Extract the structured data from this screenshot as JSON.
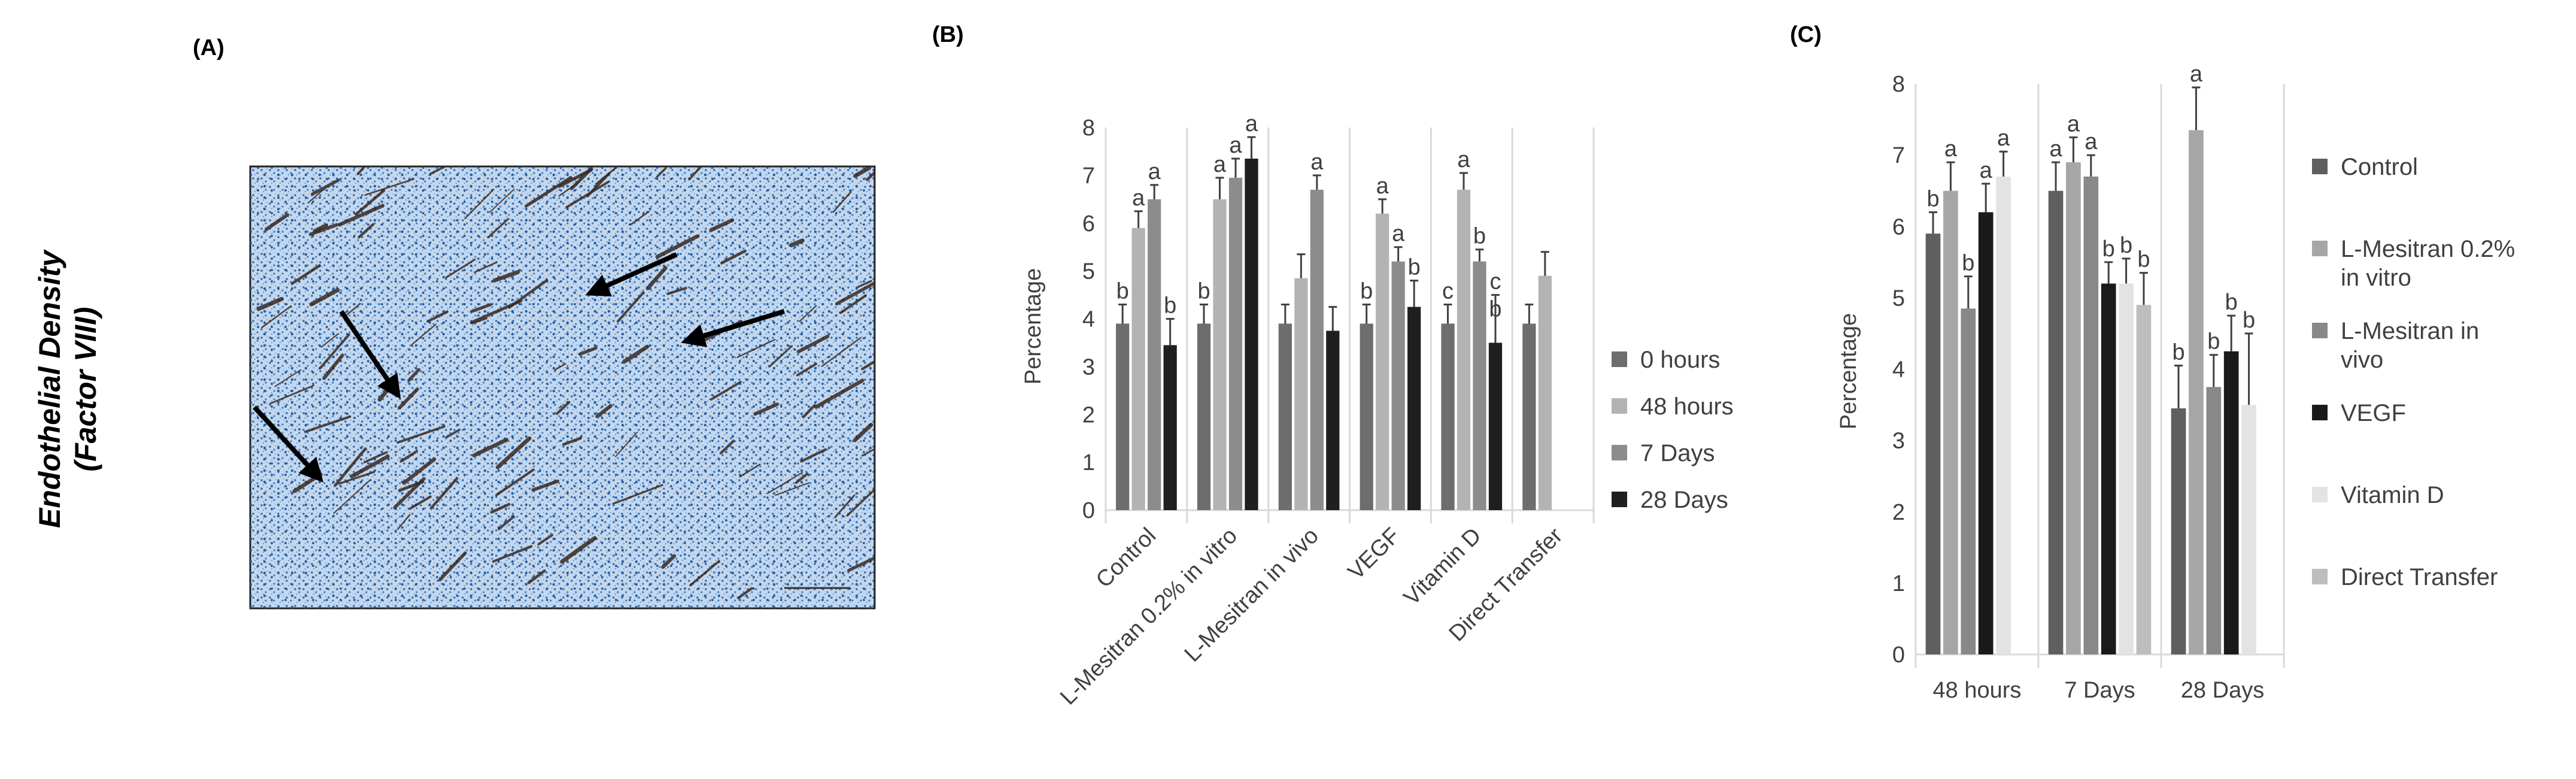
{
  "colors": {
    "background": "#ffffff",
    "axis": "#d9d9d9",
    "text": "#404040",
    "tissue_bg": "#b9cfe6",
    "tissue_dot": "#2f6fb8",
    "vessel": "#3a2a22",
    "arrow": "#000000"
  },
  "panel_a": {
    "label": "(A)",
    "y_title_line1": "Endothelial Density",
    "y_title_line2": "(Factor VIII)"
  },
  "chart_data": [
    {
      "panel_label": "(B)",
      "type": "bar",
      "title": "",
      "xlabel": "",
      "ylabel": "Percentage",
      "ylim": [
        0,
        8
      ],
      "yticks": [
        "0",
        "1",
        "2",
        "3",
        "4",
        "5",
        "6",
        "7",
        "8"
      ],
      "grid": false,
      "legend_position": "right",
      "categories": [
        "Control",
        "L-Mesitran 0.2% in vitro",
        "L-Mesitran in vivo",
        "VEGF",
        "Vitamin D",
        "Direct Transfer"
      ],
      "series": [
        {
          "name": "0 hours",
          "color": "#6d6d6d",
          "values": [
            3.9,
            3.9,
            3.9,
            3.9,
            3.9,
            3.9
          ],
          "errors": [
            0.4,
            0.4,
            0.4,
            0.4,
            0.4,
            0.4
          ],
          "labels": [
            "b",
            "b",
            "",
            "b",
            "c",
            ""
          ]
        },
        {
          "name": "48 hours",
          "color": "#b3b3b3",
          "values": [
            5.9,
            6.5,
            4.85,
            6.2,
            6.7,
            4.9
          ],
          "errors": [
            0.35,
            0.45,
            0.5,
            0.3,
            0.35,
            0.5
          ],
          "labels": [
            "a",
            "a",
            "",
            "a",
            "a",
            ""
          ]
        },
        {
          "name": "7 Days",
          "color": "#8c8c8c",
          "values": [
            6.5,
            6.95,
            6.7,
            5.2,
            5.2,
            null
          ],
          "errors": [
            0.3,
            0.4,
            0.3,
            0.3,
            0.25,
            null
          ],
          "labels": [
            "a",
            "a",
            "a",
            "a",
            "b",
            ""
          ]
        },
        {
          "name": "28 Days",
          "color": "#1f1f1f",
          "values": [
            3.45,
            7.35,
            3.75,
            4.25,
            3.5,
            null
          ],
          "errors": [
            0.55,
            0.45,
            0.5,
            0.55,
            1.0,
            null
          ],
          "labels": [
            "b",
            "a",
            "",
            "b",
            "c",
            ""
          ]
        }
      ],
      "extra_labels": [
        {
          "category": "Vitamin D",
          "series": "28 Days",
          "text": "b"
        }
      ]
    },
    {
      "panel_label": "(C)",
      "type": "bar",
      "title": "",
      "xlabel": "",
      "ylabel": "Percentage",
      "ylim": [
        0,
        8
      ],
      "yticks": [
        "0",
        "1",
        "2",
        "3",
        "4",
        "5",
        "6",
        "7",
        "8"
      ],
      "grid": false,
      "legend_position": "right",
      "categories": [
        "48 hours",
        "7 Days",
        "28 Days"
      ],
      "series": [
        {
          "name": "Control",
          "color": "#5f5f5f",
          "values": [
            5.9,
            6.5,
            3.45
          ],
          "errors": [
            0.3,
            0.4,
            0.6
          ],
          "labels": [
            "b",
            "a",
            "b"
          ]
        },
        {
          "name": "L-Mesitran 0.2% in vitro",
          "color": "#a6a6a6",
          "values": [
            6.5,
            6.9,
            7.35
          ],
          "errors": [
            0.4,
            0.35,
            0.6
          ],
          "labels": [
            "a",
            "a",
            "a"
          ]
        },
        {
          "name": "L-Mesitran in vivo",
          "color": "#888888",
          "values": [
            4.85,
            6.7,
            3.75
          ],
          "errors": [
            0.45,
            0.3,
            0.45
          ],
          "labels": [
            "b",
            "a",
            "b"
          ]
        },
        {
          "name": "VEGF",
          "color": "#1a1a1a",
          "values": [
            6.2,
            5.2,
            4.25
          ],
          "errors": [
            0.4,
            0.3,
            0.5
          ],
          "labels": [
            "a",
            "b",
            "b"
          ]
        },
        {
          "name": "Vitamin D",
          "color": "#e3e3e3",
          "values": [
            6.7,
            5.2,
            3.5
          ],
          "errors": [
            0.35,
            0.35,
            1.0
          ],
          "labels": [
            "a",
            "b",
            "b"
          ]
        },
        {
          "name": "Direct Transfer",
          "color": "#bdbdbd",
          "values": [
            null,
            4.9,
            null
          ],
          "errors": [
            null,
            0.45,
            null
          ],
          "labels": [
            "",
            "b",
            ""
          ]
        }
      ]
    }
  ]
}
